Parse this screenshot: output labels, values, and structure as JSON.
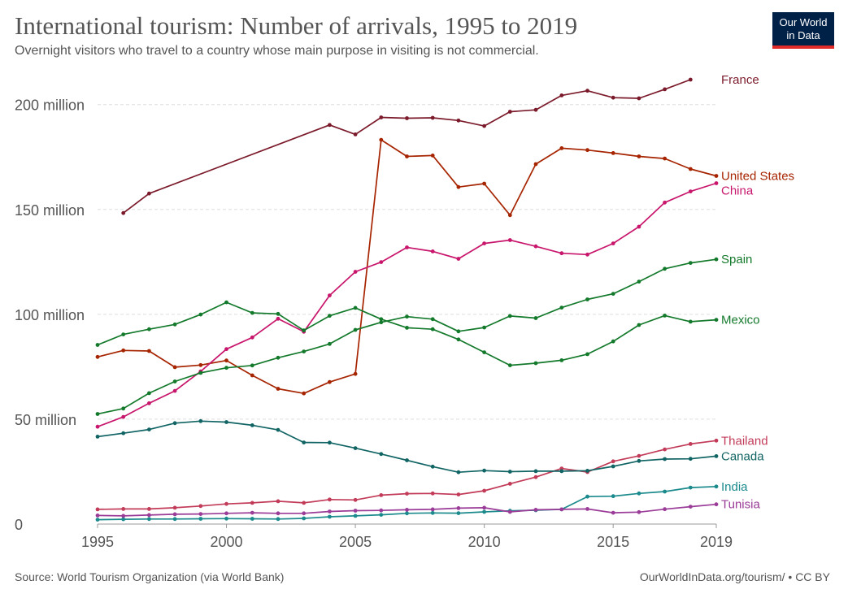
{
  "header": {
    "title": "International tourism: Number of arrivals, 1995 to 2019",
    "subtitle": "Overnight visitors who travel to a country whose main purpose in visiting is not commercial.",
    "logo_line1": "Our World",
    "logo_line2": "in Data"
  },
  "footer": {
    "source": "Source: World Tourism Organization (via World Bank)",
    "credit": "OurWorldInData.org/tourism/ • CC BY"
  },
  "colors": {
    "logo_bg": "#002147",
    "logo_accent": "#e02a28",
    "text": "#555555",
    "grid": "#dddddd"
  },
  "chart_data": {
    "type": "line",
    "title": "International tourism: Number of arrivals, 1995 to 2019",
    "xlabel": "",
    "ylabel": "",
    "xlim": [
      1995,
      2019
    ],
    "ylim": [
      0,
      215000000
    ],
    "x_ticks": [
      1995,
      2000,
      2005,
      2010,
      2015,
      2019
    ],
    "x_tick_labels": [
      "1995",
      "2000",
      "2005",
      "2010",
      "2015",
      "2019"
    ],
    "y_ticks": [
      0,
      50000000,
      100000000,
      150000000,
      200000000
    ],
    "y_tick_labels": [
      "0",
      "50 million",
      "100 million",
      "150 million",
      "200 million"
    ],
    "grid": "horizontal dashed",
    "legend": "labels at line ends (right)",
    "x": [
      1995,
      1996,
      1997,
      1998,
      1999,
      2000,
      2001,
      2002,
      2003,
      2004,
      2005,
      2006,
      2007,
      2008,
      2009,
      2010,
      2011,
      2012,
      2013,
      2014,
      2015,
      2016,
      2017,
      2018,
      2019
    ],
    "series": [
      {
        "name": "France",
        "color": "#7b1a2a",
        "values": [
          null,
          148300000,
          157600000,
          null,
          null,
          null,
          null,
          null,
          null,
          190300000,
          185800000,
          193900000,
          193500000,
          193700000,
          192400000,
          189800000,
          196600000,
          197500000,
          204400000,
          206600000,
          203300000,
          203000000,
          207300000,
          211900000,
          null
        ]
      },
      {
        "name": "United States",
        "color": "#a62400",
        "values": [
          79700000,
          82800000,
          82500000,
          74800000,
          75800000,
          78000000,
          70900000,
          64500000,
          62300000,
          67700000,
          71600000,
          183200000,
          175300000,
          175700000,
          160700000,
          162300000,
          147300000,
          171600000,
          179200000,
          178300000,
          176900000,
          175300000,
          174300000,
          169300000,
          166000000
        ]
      },
      {
        "name": "China",
        "color": "#c8166c",
        "values": [
          46400000,
          51100000,
          57600000,
          63500000,
          72800000,
          83400000,
          89000000,
          97900000,
          91700000,
          109000000,
          120300000,
          124900000,
          131900000,
          130000000,
          126500000,
          133800000,
          135400000,
          132400000,
          129100000,
          128500000,
          133800000,
          141800000,
          153300000,
          158600000,
          162500000
        ]
      },
      {
        "name": "Spain",
        "color": "#13792b",
        "values": [
          52500000,
          55100000,
          62400000,
          68000000,
          72100000,
          74500000,
          75600000,
          79300000,
          82300000,
          85900000,
          92600000,
          96200000,
          98900000,
          97700000,
          91900000,
          93700000,
          99200000,
          98200000,
          103200000,
          107100000,
          109800000,
          115600000,
          121700000,
          124500000,
          126200000
        ]
      },
      {
        "name": "Mexico",
        "color": "#13792b",
        "values": [
          85400000,
          90400000,
          92900000,
          95200000,
          99900000,
          105700000,
          100700000,
          100200000,
          92300000,
          99300000,
          103100000,
          97700000,
          93600000,
          92900000,
          88000000,
          81900000,
          75700000,
          76700000,
          78100000,
          81000000,
          87100000,
          94900000,
          99400000,
          96500000,
          97400000
        ]
      },
      {
        "name": "Thailand",
        "color": "#c23b58",
        "values": [
          7000000,
          7200000,
          7200000,
          7800000,
          8600000,
          9600000,
          10100000,
          10900000,
          10100000,
          11700000,
          11500000,
          13800000,
          14500000,
          14600000,
          14100000,
          15900000,
          19200000,
          22400000,
          26500000,
          24800000,
          29900000,
          32500000,
          35600000,
          38200000,
          39800000
        ]
      },
      {
        "name": "Canada",
        "color": "#116464",
        "values": [
          41700000,
          43300000,
          45100000,
          48100000,
          49100000,
          48600000,
          47100000,
          44900000,
          38900000,
          38800000,
          36200000,
          33400000,
          30400000,
          27400000,
          24700000,
          25500000,
          25000000,
          25200000,
          25200000,
          25400000,
          27500000,
          30100000,
          31000000,
          31100000,
          32400000
        ]
      },
      {
        "name": "India",
        "color": "#1b8a8c",
        "values": [
          2100000,
          2300000,
          2400000,
          2400000,
          2500000,
          2600000,
          2500000,
          2400000,
          2700000,
          3500000,
          3900000,
          4400000,
          5100000,
          5300000,
          5200000,
          5800000,
          6300000,
          6600000,
          7000000,
          13100000,
          13300000,
          14600000,
          15500000,
          17400000,
          17900000
        ]
      },
      {
        "name": "Tunisia",
        "color": "#9a3c98",
        "values": [
          4100000,
          3900000,
          4300000,
          4700000,
          4800000,
          5100000,
          5400000,
          5100000,
          5100000,
          6000000,
          6400000,
          6500000,
          6800000,
          7000000,
          7600000,
          7800000,
          5800000,
          6800000,
          7000000,
          7200000,
          5400000,
          5700000,
          7100000,
          8300000,
          9400000
        ]
      }
    ]
  }
}
